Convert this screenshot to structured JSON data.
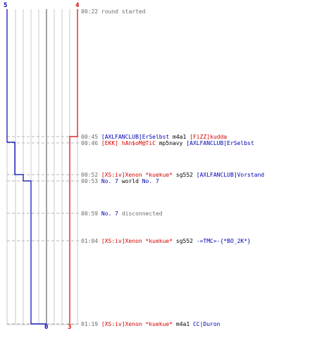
{
  "team_blue": {
    "color": "#0000b4",
    "start_score": "5",
    "end_score": "0"
  },
  "team_red": {
    "color": "#d60000",
    "start_score": "4",
    "end_score": "3"
  },
  "events": [
    {
      "time": "00:22",
      "parts": [
        {
          "text": "round started",
          "style": "s"
        }
      ]
    },
    {
      "time": "00:45",
      "parts": [
        {
          "text": "[AXLFANCLUB]ErSelbst",
          "style": "blue"
        },
        {
          "text": " m4a1 ",
          "style": "dark"
        },
        {
          "text": "[FiZZ]kudda",
          "style": "red"
        }
      ]
    },
    {
      "time": "00:46",
      "parts": [
        {
          "text": "[EKK] hAn$oM@TiC",
          "style": "red"
        },
        {
          "text": " mp5navy ",
          "style": "dark"
        },
        {
          "text": "[AXLFANCLUB]ErSelbst",
          "style": "blue"
        }
      ]
    },
    {
      "time": "00:52",
      "parts": [
        {
          "text": "[XS:iv]Xenon *kuekue*",
          "style": "red"
        },
        {
          "text": " sg552 ",
          "style": "dark"
        },
        {
          "text": "[AXLFANCLUB]Vorstand",
          "style": "blue"
        }
      ]
    },
    {
      "time": "00:53",
      "parts": [
        {
          "text": "No. 7",
          "style": "blue"
        },
        {
          "text": " world ",
          "style": "dark"
        },
        {
          "text": "No. 7",
          "style": "blue"
        }
      ]
    },
    {
      "time": "00:59",
      "parts": [
        {
          "text": "No. 7",
          "style": "blue"
        },
        {
          "text": " disconnected",
          "style": "s"
        }
      ]
    },
    {
      "time": "01:04",
      "parts": [
        {
          "text": "[XS:iv]Xenon *kuekue*",
          "style": "red"
        },
        {
          "text": " sg552 ",
          "style": "dark"
        },
        {
          "text": "-=TMC=-{*BO_2K*}",
          "style": "blue"
        }
      ]
    },
    {
      "time": "01:19",
      "parts": [
        {
          "text": "[XS:iv]Xenon *kuekue*",
          "style": "red"
        },
        {
          "text": " m4a1 ",
          "style": "dark"
        },
        {
          "text": "CC|Duron",
          "style": "blue"
        }
      ]
    }
  ]
}
